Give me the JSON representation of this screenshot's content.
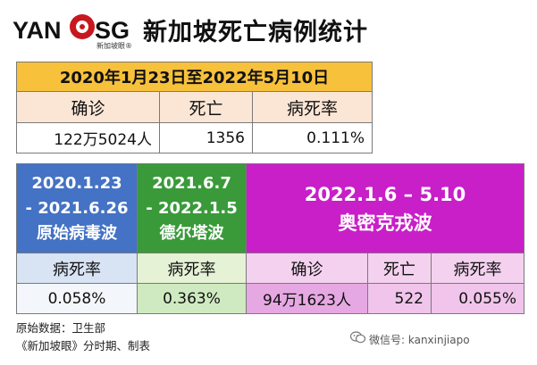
{
  "header": {
    "logo_left": "YAN",
    "logo_right": "SG",
    "logo_sub": "新加坡眼®",
    "title": "新加坡死亡病例统计"
  },
  "overall": {
    "period": "2020年1月23日至2022年5月10日",
    "labels": [
      "确诊",
      "死亡",
      "病死率"
    ],
    "values": [
      "122万5024人",
      "1356",
      "0.111%"
    ]
  },
  "waves": {
    "original": {
      "date1": "2020.1.23",
      "date2": "- 2021.6.26",
      "name": "原始病毒波",
      "label": "病死率",
      "value": "0.058%"
    },
    "delta": {
      "date1": "2021.6.7",
      "date2": "- 2022.1.5",
      "name": "德尔塔波",
      "label": "病死率",
      "value": "0.363%"
    },
    "omicron": {
      "date": "2022.1.6 – 5.10",
      "name": "奥密克戎波",
      "labels": [
        "确诊",
        "死亡",
        "病死率"
      ],
      "values": [
        "94万1623人",
        "522",
        "0.055%"
      ]
    }
  },
  "notes": {
    "source": "原始数据：卫生部",
    "credit": "《新加坡眼》分时期、制表"
  },
  "watermark": {
    "text": "微信号: kanxinjiapo",
    "icon": "wechat-icon"
  }
}
